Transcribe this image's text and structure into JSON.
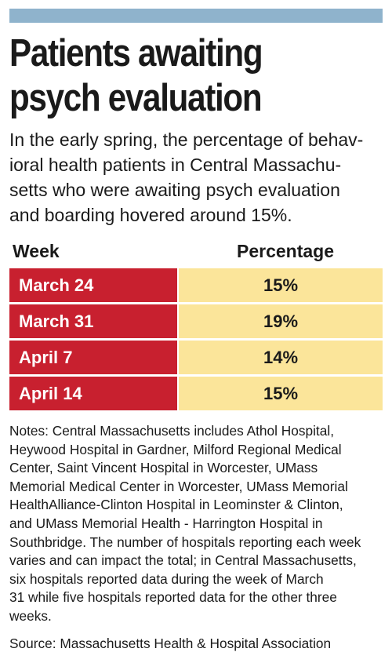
{
  "title": "Patients awaiting\npsych evaluation",
  "subtitle": "In the early spring, the percentage of behav-\nioral health patients in Central Massachu-\nsetts who were awaiting psych evaluation\nand boarding hovered around 15%.",
  "colors": {
    "top_bar": "#8fb3cc",
    "week_cell": "#c8202f",
    "value_cell": "#fbe59a"
  },
  "chart_data": {
    "type": "table",
    "columns": [
      "Week",
      "Percentage"
    ],
    "rows": [
      {
        "week": "March 24",
        "percentage": "15%"
      },
      {
        "week": "March 31",
        "percentage": "19%"
      },
      {
        "week": "April 7",
        "percentage": "14%"
      },
      {
        "week": "April 14",
        "percentage": "15%"
      }
    ],
    "values": [
      15,
      19,
      14,
      15
    ]
  },
  "notes": "Notes: Central Massachusetts includes Athol Hospital,\nHeywood Hospital in Gardner, Milford Regional Medical\nCenter, Saint Vincent Hospital in Worcester, UMass\nMemorial Medical Center in Worcester, UMass Memorial\nHealthAlliance-Clinton Hospital in Leominster & Clinton,\nand UMass Memorial Health - Harrington Hospital in\nSouthbridge. The number of hospitals reporting each week\nvaries and can impact the total; in Central Massachusetts,\nsix hospitals reported data during the week of March\n31 while five hospitals reported data for the other three\nweeks.",
  "source": "Source: Massachusetts Health & Hospital Association"
}
